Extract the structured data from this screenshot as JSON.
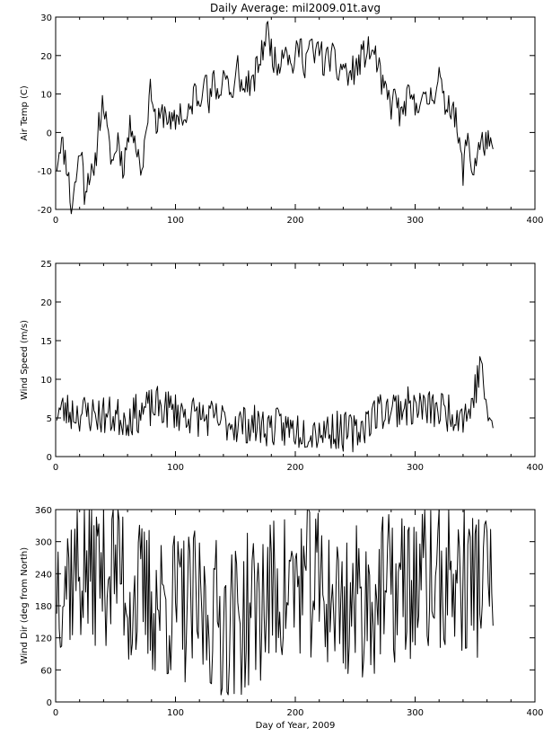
{
  "title": "Daily Average: mil2009.01t.avg",
  "colors": {
    "line": "#000000",
    "background": "#ffffff",
    "axis": "#000000"
  },
  "chart_data": [
    {
      "type": "line",
      "id": "air-temp",
      "title": "Daily Average: mil2009.01t.avg",
      "xlabel": "",
      "ylabel": "Air Temp (C)",
      "xlim": [
        0,
        400
      ],
      "ylim": [
        -20,
        30
      ],
      "xticks": [
        0,
        100,
        200,
        300,
        400
      ],
      "yticks": [
        -20,
        -10,
        0,
        10,
        20,
        30
      ],
      "grid": false,
      "x_range": [
        1,
        365
      ],
      "key_points": [
        [
          1,
          -8
        ],
        [
          4,
          -2
        ],
        [
          7,
          -5
        ],
        [
          10,
          -9
        ],
        [
          13,
          -20
        ],
        [
          17,
          -12
        ],
        [
          21,
          -3
        ],
        [
          24,
          -15
        ],
        [
          28,
          -10
        ],
        [
          32,
          -13
        ],
        [
          36,
          3
        ],
        [
          40,
          8
        ],
        [
          44,
          -3
        ],
        [
          48,
          -8
        ],
        [
          52,
          -1
        ],
        [
          56,
          -9
        ],
        [
          60,
          -2
        ],
        [
          64,
          3
        ],
        [
          68,
          -5
        ],
        [
          72,
          -10
        ],
        [
          76,
          4
        ],
        [
          80,
          12
        ],
        [
          84,
          1
        ],
        [
          88,
          4
        ],
        [
          92,
          6
        ],
        [
          96,
          1
        ],
        [
          100,
          3
        ],
        [
          104,
          6
        ],
        [
          108,
          2
        ],
        [
          112,
          5
        ],
        [
          116,
          11
        ],
        [
          120,
          8
        ],
        [
          124,
          17
        ],
        [
          128,
          6
        ],
        [
          132,
          14
        ],
        [
          136,
          9
        ],
        [
          140,
          16
        ],
        [
          144,
          13
        ],
        [
          148,
          8
        ],
        [
          152,
          18
        ],
        [
          156,
          10
        ],
        [
          160,
          14
        ],
        [
          164,
          11
        ],
        [
          168,
          17
        ],
        [
          172,
          20
        ],
        [
          176,
          27
        ],
        [
          180,
          22
        ],
        [
          184,
          17
        ],
        [
          188,
          20
        ],
        [
          192,
          24
        ],
        [
          196,
          17
        ],
        [
          200,
          19
        ],
        [
          204,
          23
        ],
        [
          208,
          18
        ],
        [
          212,
          23
        ],
        [
          216,
          19
        ],
        [
          220,
          23
        ],
        [
          224,
          17
        ],
        [
          228,
          20
        ],
        [
          232,
          19
        ],
        [
          236,
          15
        ],
        [
          240,
          18
        ],
        [
          244,
          14
        ],
        [
          248,
          16
        ],
        [
          252,
          17
        ],
        [
          256,
          20
        ],
        [
          260,
          21
        ],
        [
          264,
          21
        ],
        [
          268,
          19
        ],
        [
          272,
          12
        ],
        [
          276,
          10
        ],
        [
          280,
          7
        ],
        [
          284,
          10
        ],
        [
          288,
          3
        ],
        [
          292,
          8
        ],
        [
          296,
          9
        ],
        [
          300,
          6
        ],
        [
          304,
          10
        ],
        [
          308,
          7
        ],
        [
          312,
          9
        ],
        [
          316,
          11
        ],
        [
          320,
          15
        ],
        [
          324,
          7
        ],
        [
          328,
          8
        ],
        [
          332,
          7
        ],
        [
          336,
          -2
        ],
        [
          340,
          -10
        ],
        [
          344,
          0
        ],
        [
          348,
          -11
        ],
        [
          352,
          -5
        ],
        [
          356,
          -3
        ],
        [
          360,
          -2
        ],
        [
          364,
          -6
        ]
      ],
      "wiggle": {
        "amplitude": 4,
        "seed": 11
      }
    },
    {
      "type": "line",
      "id": "wind-speed",
      "title": "",
      "xlabel": "",
      "ylabel": "Wind Speed (m/s)",
      "xlim": [
        0,
        400
      ],
      "ylim": [
        0,
        25
      ],
      "xticks": [
        0,
        100,
        200,
        300,
        400
      ],
      "yticks": [
        0,
        5,
        10,
        15,
        20,
        25
      ],
      "grid": false,
      "x_range": [
        1,
        365
      ],
      "key_points": [
        [
          1,
          6
        ],
        [
          30,
          5.5
        ],
        [
          60,
          5
        ],
        [
          75,
          6
        ],
        [
          85,
          6.5
        ],
        [
          110,
          5.5
        ],
        [
          140,
          4.5
        ],
        [
          170,
          4
        ],
        [
          200,
          3.5
        ],
        [
          230,
          3.5
        ],
        [
          250,
          3
        ],
        [
          262,
          5
        ],
        [
          270,
          6
        ],
        [
          290,
          6.5
        ],
        [
          320,
          6
        ],
        [
          345,
          5.5
        ],
        [
          356,
          12.5
        ],
        [
          360,
          4
        ],
        [
          364,
          5
        ]
      ],
      "wiggle": {
        "amplitude": 2.6,
        "seed": 23
      },
      "min": 0.5
    },
    {
      "type": "line",
      "id": "wind-dir",
      "title": "",
      "xlabel": "Day of Year, 2009",
      "ylabel": "Wind Dir (deg from North)",
      "xlim": [
        0,
        400
      ],
      "ylim": [
        0,
        360
      ],
      "xticks": [
        0,
        100,
        200,
        300,
        400
      ],
      "yticks": [
        0,
        60,
        120,
        180,
        240,
        300,
        360
      ],
      "grid": false,
      "x_range": [
        1,
        365
      ],
      "key_points": [
        [
          1,
          240
        ],
        [
          55,
          260
        ],
        [
          60,
          200
        ],
        [
          120,
          170
        ],
        [
          150,
          150
        ],
        [
          180,
          200
        ],
        [
          210,
          230
        ],
        [
          240,
          180
        ],
        [
          270,
          200
        ],
        [
          300,
          220
        ],
        [
          330,
          230
        ],
        [
          364,
          230
        ]
      ],
      "wiggle": {
        "amplitude": 150,
        "seed": 37
      },
      "min": 0,
      "max": 360
    }
  ]
}
